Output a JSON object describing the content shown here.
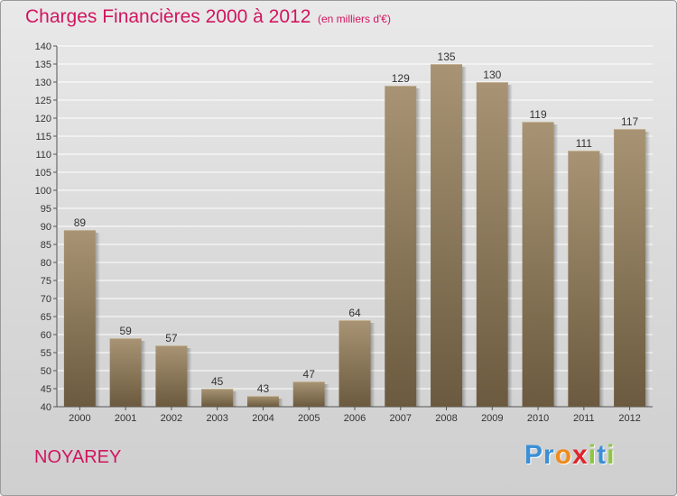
{
  "title": "Charges Financières 2000 à 2012",
  "unit_note": "(en milliers d'€)",
  "commune": "NOYAREY",
  "brand": {
    "letters": [
      "P",
      "r",
      "o",
      "x",
      "i",
      "t",
      "i"
    ],
    "colors": [
      "#3a8fd6",
      "#3a8fd6",
      "#f08a1c",
      "#e0232b",
      "#8cc63f",
      "#3a8fd6",
      "#8cc63f"
    ]
  },
  "colors": {
    "accent": "#d1155f",
    "bar_top": "#a89474",
    "bar_bottom": "#6b5a3f"
  },
  "chart_data": {
    "type": "bar",
    "title": "Charges Financières 2000 à 2012",
    "subtitle": "(en milliers d'€)",
    "xlabel": "",
    "ylabel": "",
    "categories": [
      "2000",
      "2001",
      "2002",
      "2003",
      "2004",
      "2005",
      "2006",
      "2007",
      "2008",
      "2009",
      "2010",
      "2011",
      "2012"
    ],
    "values": [
      89,
      59,
      57,
      45,
      43,
      47,
      64,
      129,
      135,
      130,
      119,
      111,
      117
    ],
    "ylim": [
      40,
      140
    ],
    "ytick_step": 5,
    "grid": true,
    "legend": "none"
  }
}
